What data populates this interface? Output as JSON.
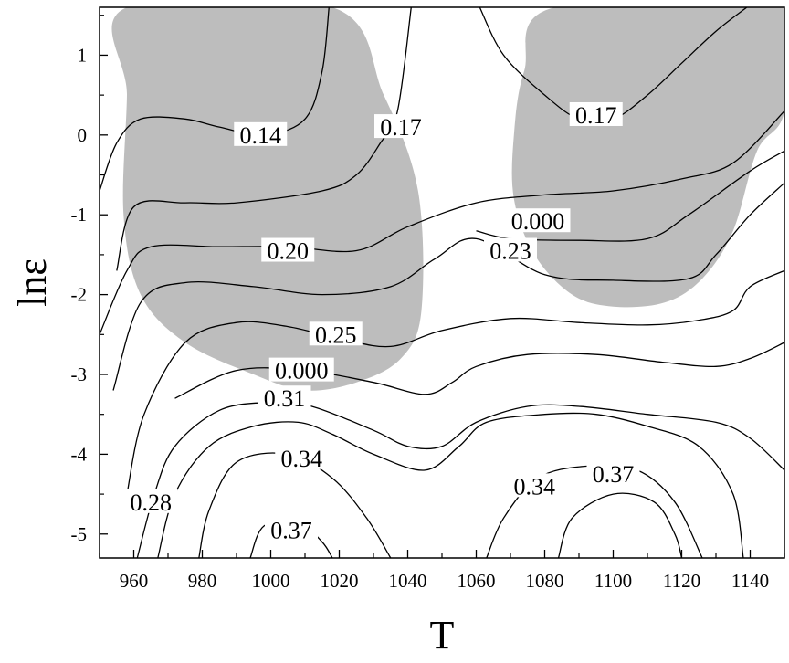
{
  "chart_data": {
    "type": "contour",
    "xlabel": "T",
    "ylabel": "lnε",
    "xlim": [
      950,
      1150
    ],
    "ylim": [
      -5.3,
      1.6
    ],
    "xticks": [
      960,
      980,
      1000,
      1020,
      1040,
      1060,
      1080,
      1100,
      1120,
      1140
    ],
    "yticks": [
      1,
      0,
      -1,
      -2,
      -3,
      -4,
      -5
    ],
    "grid": false,
    "shaded_region_color": "#bdbdbd",
    "contour_line_color": "#000000",
    "shaded_regions": [
      {
        "points": [
          [
            958,
            1.6
          ],
          [
            1018,
            1.6
          ],
          [
            1033,
            0.5
          ],
          [
            1043,
            -0.7
          ],
          [
            1044,
            -2.2
          ],
          [
            1038,
            -2.8
          ],
          [
            1025,
            -3.1
          ],
          [
            1010,
            -3.2
          ],
          [
            995,
            -3.0
          ],
          [
            975,
            -2.6
          ],
          [
            962,
            -2.0
          ],
          [
            957,
            -1.0
          ],
          [
            958,
            0.5
          ]
        ]
      },
      {
        "points": [
          [
            1083,
            1.6
          ],
          [
            1150,
            1.6
          ],
          [
            1150,
            0.3
          ],
          [
            1142,
            -0.2
          ],
          [
            1135,
            -1.2
          ],
          [
            1126,
            -1.8
          ],
          [
            1115,
            -2.1
          ],
          [
            1100,
            -2.15
          ],
          [
            1088,
            -2.0
          ],
          [
            1077,
            -1.5
          ],
          [
            1071,
            -0.8
          ],
          [
            1071,
            0.0
          ],
          [
            1074,
            0.8
          ]
        ]
      }
    ],
    "contours": [
      {
        "label": "0.14",
        "points": [
          [
            950,
            -0.7
          ],
          [
            955,
            -0.1
          ],
          [
            962,
            0.2
          ],
          [
            975,
            0.2
          ],
          [
            985,
            0.1
          ],
          [
            998,
            0.0
          ],
          [
            1010,
            0.2
          ],
          [
            1015,
            0.8
          ],
          [
            1017,
            1.6
          ]
        ]
      },
      {
        "label": "0.17",
        "points": [
          [
            955,
            -1.7
          ],
          [
            960,
            -0.9
          ],
          [
            975,
            -0.85
          ],
          [
            990,
            -0.85
          ],
          [
            1015,
            -0.7
          ],
          [
            1025,
            -0.5
          ],
          [
            1032,
            -0.1
          ],
          [
            1037,
            0.3
          ],
          [
            1041,
            1.6
          ]
        ]
      },
      {
        "label": "0.17",
        "points": [
          [
            1061,
            1.6
          ],
          [
            1068,
            1.0
          ],
          [
            1080,
            0.5
          ],
          [
            1090,
            0.2
          ],
          [
            1100,
            0.2
          ],
          [
            1110,
            0.5
          ],
          [
            1120,
            0.9
          ],
          [
            1130,
            1.3
          ],
          [
            1139,
            1.6
          ]
        ]
      },
      {
        "label": "0.20",
        "points": [
          [
            950,
            -2.5
          ],
          [
            958,
            -1.7
          ],
          [
            965,
            -1.4
          ],
          [
            985,
            -1.4
          ],
          [
            1005,
            -1.4
          ],
          [
            1025,
            -1.45
          ],
          [
            1040,
            -1.15
          ],
          [
            1060,
            -0.85
          ],
          [
            1080,
            -0.75
          ],
          [
            1100,
            -0.7
          ],
          [
            1120,
            -0.55
          ],
          [
            1135,
            -0.35
          ],
          [
            1150,
            0.3
          ]
        ]
      },
      {
        "label": "0.000",
        "points": [
          [
            1060,
            -1.2
          ],
          [
            1070,
            -1.3
          ],
          [
            1090,
            -1.32
          ],
          [
            1110,
            -1.3
          ],
          [
            1122,
            -1.0
          ],
          [
            1140,
            -0.45
          ],
          [
            1150,
            -0.2
          ]
        ]
      },
      {
        "label": "0.23",
        "points": [
          [
            954,
            -3.2
          ],
          [
            962,
            -2.1
          ],
          [
            975,
            -1.85
          ],
          [
            995,
            -1.9
          ],
          [
            1015,
            -2.0
          ],
          [
            1035,
            -1.9
          ],
          [
            1048,
            -1.55
          ],
          [
            1060,
            -1.3
          ],
          [
            1080,
            -1.75
          ],
          [
            1100,
            -1.82
          ],
          [
            1122,
            -1.8
          ],
          [
            1130,
            -1.5
          ],
          [
            1140,
            -1.0
          ],
          [
            1150,
            -0.6
          ]
        ]
      },
      {
        "label": "0.25",
        "points": [
          [
            958,
            -4.5
          ],
          [
            963,
            -3.5
          ],
          [
            975,
            -2.6
          ],
          [
            990,
            -2.35
          ],
          [
            1005,
            -2.4
          ],
          [
            1020,
            -2.55
          ],
          [
            1035,
            -2.65
          ],
          [
            1050,
            -2.45
          ],
          [
            1070,
            -2.3
          ],
          [
            1090,
            -2.35
          ],
          [
            1110,
            -2.38
          ],
          [
            1125,
            -2.32
          ],
          [
            1135,
            -2.2
          ],
          [
            1140,
            -1.9
          ],
          [
            1150,
            -1.7
          ]
        ]
      },
      {
        "label": "0.000",
        "points": [
          [
            972,
            -3.3
          ],
          [
            990,
            -2.95
          ],
          [
            1010,
            -2.95
          ],
          [
            1030,
            -3.1
          ],
          [
            1045,
            -3.25
          ],
          [
            1053,
            -3.1
          ],
          [
            1060,
            -2.9
          ],
          [
            1075,
            -2.75
          ],
          [
            1095,
            -2.75
          ],
          [
            1115,
            -2.85
          ],
          [
            1130,
            -2.9
          ],
          [
            1140,
            -2.8
          ],
          [
            1150,
            -2.6
          ]
        ]
      },
      {
        "label": "0.28",
        "points": [
          [
            961,
            -5.3
          ],
          [
            966,
            -4.5
          ],
          [
            972,
            -3.9
          ],
          [
            985,
            -3.45
          ],
          [
            1000,
            -3.35
          ],
          [
            1012,
            -3.4
          ],
          [
            1030,
            -3.7
          ],
          [
            1040,
            -3.9
          ],
          [
            1050,
            -3.9
          ],
          [
            1060,
            -3.6
          ],
          [
            1075,
            -3.4
          ],
          [
            1090,
            -3.4
          ],
          [
            1110,
            -3.5
          ],
          [
            1130,
            -3.6
          ],
          [
            1140,
            -3.8
          ],
          [
            1150,
            -4.2
          ]
        ]
      },
      {
        "label": "0.31",
        "points": [
          [
            967,
            -5.3
          ],
          [
            972,
            -4.5
          ],
          [
            982,
            -3.9
          ],
          [
            995,
            -3.65
          ],
          [
            1008,
            -3.6
          ],
          [
            1018,
            -3.75
          ],
          [
            1030,
            -4.0
          ],
          [
            1045,
            -4.2
          ],
          [
            1055,
            -3.9
          ],
          [
            1063,
            -3.6
          ],
          [
            1080,
            -3.5
          ],
          [
            1095,
            -3.5
          ],
          [
            1110,
            -3.65
          ],
          [
            1125,
            -3.9
          ],
          [
            1135,
            -4.5
          ],
          [
            1138,
            -5.3
          ]
        ]
      },
      {
        "label": "0.34",
        "points": [
          [
            979,
            -5.3
          ],
          [
            982,
            -4.7
          ],
          [
            990,
            -4.1
          ],
          [
            1005,
            -4.0
          ],
          [
            1018,
            -4.3
          ],
          [
            1028,
            -4.8
          ],
          [
            1035,
            -5.3
          ]
        ]
      },
      {
        "label": "0.34",
        "points": [
          [
            1063,
            -5.3
          ],
          [
            1068,
            -4.8
          ],
          [
            1078,
            -4.3
          ],
          [
            1092,
            -4.15
          ],
          [
            1107,
            -4.2
          ],
          [
            1118,
            -4.6
          ],
          [
            1126,
            -5.3
          ]
        ]
      },
      {
        "label": "0.37",
        "points": [
          [
            994,
            -5.3
          ],
          [
            998,
            -4.9
          ],
          [
            1008,
            -4.85
          ],
          [
            1015,
            -5.1
          ],
          [
            1018,
            -5.3
          ]
        ]
      },
      {
        "label": "0.37",
        "points": [
          [
            1084,
            -5.3
          ],
          [
            1088,
            -4.8
          ],
          [
            1100,
            -4.5
          ],
          [
            1112,
            -4.6
          ],
          [
            1118,
            -5.0
          ],
          [
            1120,
            -5.3
          ]
        ]
      }
    ],
    "contour_labels": [
      {
        "text": "0.14",
        "x": 997,
        "y": 0.0
      },
      {
        "text": "0.17",
        "x": 1038,
        "y": 0.1
      },
      {
        "text": "0.17",
        "x": 1095,
        "y": 0.25
      },
      {
        "text": "0.20",
        "x": 1005,
        "y": -1.45
      },
      {
        "text": "0.000",
        "x": 1078,
        "y": -1.08
      },
      {
        "text": "0.23",
        "x": 1070,
        "y": -1.45
      },
      {
        "text": "0.25",
        "x": 1019,
        "y": -2.5
      },
      {
        "text": "0.000",
        "x": 1009,
        "y": -2.95
      },
      {
        "text": "0.31",
        "x": 1004,
        "y": -3.3
      },
      {
        "text": "0.34",
        "x": 1009,
        "y": -4.05
      },
      {
        "text": "0.28",
        "x": 965,
        "y": -4.6
      },
      {
        "text": "0.34",
        "x": 1077,
        "y": -4.4
      },
      {
        "text": "0.37",
        "x": 1100,
        "y": -4.25
      },
      {
        "text": "0.37",
        "x": 1006,
        "y": -4.95
      }
    ]
  }
}
